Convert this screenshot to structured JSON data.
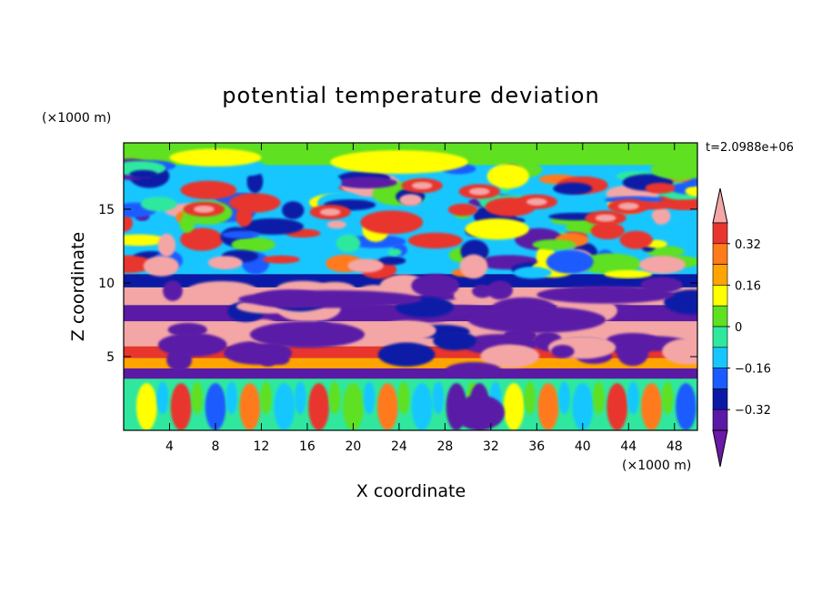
{
  "chart_data": {
    "type": "heatmap",
    "title": "potential temperature deviation",
    "xlabel": "X coordinate",
    "ylabel": "Z coordinate",
    "x_unit": "(×1000 m)",
    "y_unit": "(×1000 m)",
    "time_label": "t=2.0988e+06",
    "xlim": [
      0,
      50
    ],
    "ylim": [
      0,
      19.5
    ],
    "x_ticks": [
      4,
      8,
      12,
      16,
      20,
      24,
      28,
      32,
      36,
      40,
      44,
      48
    ],
    "y_ticks": [
      5,
      10,
      15
    ],
    "colorbar": {
      "labels": [
        "0.32",
        "0.16",
        "0",
        "−0.16",
        "−0.32"
      ],
      "levels": [
        0.4,
        0.32,
        0.24,
        0.16,
        0.08,
        0,
        -0.08,
        -0.16,
        -0.24,
        -0.32,
        -0.4
      ],
      "colors": [
        "#f4a6a6",
        "#e8352d",
        "#ff7a1a",
        "#ffa300",
        "#ffff00",
        "#5fe020",
        "#2fe89e",
        "#18c6ff",
        "#1a5cff",
        "#0b1aa6",
        "#5a1aa6",
        "#6a1aa6"
      ],
      "extend": "both"
    },
    "layers": [
      {
        "z_range": [
          0,
          3.5
        ],
        "description": "vertical plume structures"
      },
      {
        "z_range": [
          3.5,
          10
        ],
        "description": "alternating strong positive and negative horizontal bands"
      },
      {
        "z_range": [
          10,
          18
        ],
        "description": "mixed wave patches"
      },
      {
        "z_range": [
          18,
          19.5
        ],
        "description": "near-zero"
      }
    ]
  }
}
